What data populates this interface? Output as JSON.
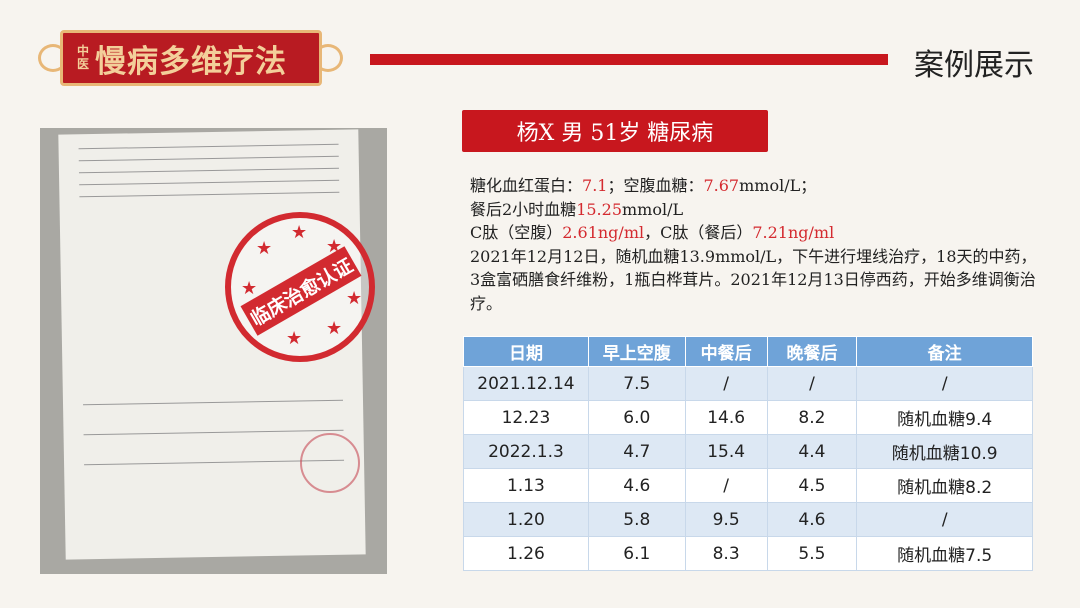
{
  "header": {
    "logo_small": "中医",
    "logo_title": "慢病多维疗法",
    "section_title": "案例展示"
  },
  "photo": {
    "stamp_text": "临床治愈认证"
  },
  "patient": {
    "label": "杨X 男 51岁 糖尿病"
  },
  "description": {
    "l1a": "糖化血红蛋白：",
    "l1b": "7.1",
    "l1c": "；空腹血糖：",
    "l1d": "7.67",
    "l1e": "mmol/L；",
    "l2a": "餐后2小时血糖",
    "l2b": "15.25",
    "l2c": "mmol/L",
    "l3a": "C肽（空腹）",
    "l3b": "2.61ng/ml",
    "l3c": "，C肽（餐后）",
    "l3d": "7.21ng/ml",
    "l4": "2021年12月12日，随机血糖13.9mmol/L，下午进行埋线治疗，18天的中药，3盒富硒膳食纤维粉，1瓶白桦茸片。2021年12月13日停西药，开始多维调衡治疗。"
  },
  "table": {
    "headers": [
      "日期",
      "早上空腹",
      "中餐后",
      "晚餐后",
      "备注"
    ],
    "rows": [
      [
        "2021.12.14",
        "7.5",
        "/",
        "/",
        "/"
      ],
      [
        "12.23",
        "6.0",
        "14.6",
        "8.2",
        "随机血糖9.4"
      ],
      [
        "2022.1.3",
        "4.7",
        "15.4",
        "4.4",
        "随机血糖10.9"
      ],
      [
        "1.13",
        "4.6",
        "/",
        "4.5",
        "随机血糖8.2"
      ],
      [
        "1.20",
        "5.8",
        "9.5",
        "4.6",
        "/"
      ],
      [
        "1.26",
        "6.1",
        "8.3",
        "5.5",
        "随机血糖7.5"
      ]
    ]
  },
  "colors": {
    "brand_red": "#c8171e",
    "header_blue": "#6fa3d8",
    "highlight_red": "#d42a2f"
  }
}
